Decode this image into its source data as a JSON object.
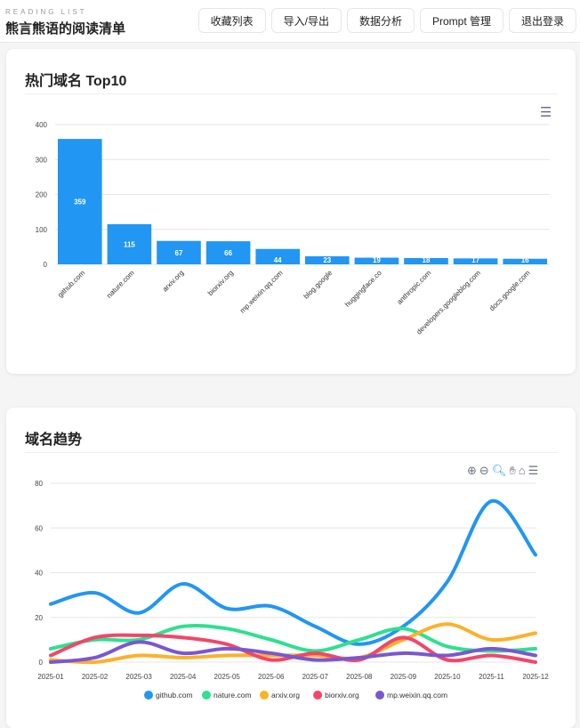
{
  "header": {
    "subtitle": "READING LIST",
    "title": "熊言熊语的阅读清单",
    "nav": [
      "收藏列表",
      "导入/导出",
      "数据分析",
      "Prompt 管理",
      "退出登录"
    ]
  },
  "top_card": {
    "title": "热门域名 Top10",
    "menu_icon": "hamburger-menu-icon"
  },
  "trend_card": {
    "title": "域名趋势",
    "toolbar_icons": [
      "zoom-in-icon",
      "zoom-out-icon",
      "selection-zoom-icon",
      "pan-icon",
      "home-reset-icon",
      "hamburger-menu-icon"
    ]
  },
  "chart_data": [
    {
      "type": "bar",
      "categories": [
        "github.com",
        "nature.com",
        "arxiv.org",
        "biorxiv.org",
        "mp.weixin.qq.com",
        "blog.google",
        "huggingface.co",
        "anthropic.com",
        "developers.googleblog.com",
        "docs.google.com"
      ],
      "values": [
        359,
        115,
        67,
        66,
        44,
        23,
        19,
        18,
        17,
        16
      ],
      "ylim": [
        0,
        400
      ],
      "yticks": [
        0,
        100,
        200,
        300,
        400
      ],
      "color": "#2196f3",
      "grid": true,
      "data_labels": true
    },
    {
      "type": "line",
      "x": [
        "2025-01",
        "2025-02",
        "2025-03",
        "2025-04",
        "2025-05",
        "2025-06",
        "2025-07",
        "2025-08",
        "2025-09",
        "2025-10",
        "2025-11",
        "2025-12"
      ],
      "ylim": [
        0,
        80
      ],
      "yticks": [
        0,
        20,
        40,
        60,
        80
      ],
      "grid": true,
      "legend": "bottom",
      "smooth": true,
      "series": [
        {
          "name": "github.com",
          "color": "#2196f3",
          "values": [
            26,
            31,
            22,
            35,
            24,
            25,
            16,
            8,
            16,
            36,
            72,
            48
          ]
        },
        {
          "name": "nature.com",
          "color": "#2ee08f",
          "values": [
            6,
            10,
            10,
            16,
            15,
            10,
            5,
            10,
            15,
            7,
            5,
            6
          ]
        },
        {
          "name": "arxiv.org",
          "color": "#fbb12a",
          "values": [
            1,
            0,
            3,
            2,
            3,
            3,
            3,
            2,
            10,
            17,
            10,
            13
          ]
        },
        {
          "name": "biorxiv.org",
          "color": "#f2466a",
          "values": [
            3,
            11,
            12,
            11,
            8,
            1,
            4,
            1,
            11,
            1,
            3,
            0
          ]
        },
        {
          "name": "mp.weixin.qq.com",
          "color": "#7a57d1",
          "values": [
            0,
            2,
            9,
            4,
            6,
            4,
            1,
            2,
            4,
            3,
            6,
            3
          ]
        }
      ]
    }
  ]
}
